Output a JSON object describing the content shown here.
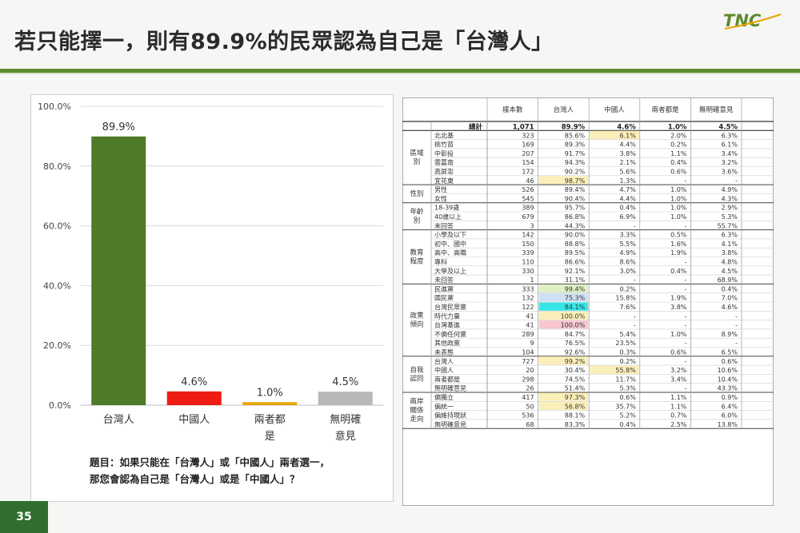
{
  "header": {
    "title": "若只能擇一，則有89.9%的民眾認為自己是「台灣人」",
    "logo_text": "TNC",
    "brand_color": "#5f8a2e"
  },
  "chart_data": {
    "type": "bar",
    "categories": [
      "台灣人",
      "中國人",
      "兩者都是",
      "無明確意見"
    ],
    "values": [
      89.9,
      4.6,
      1.0,
      4.5
    ],
    "value_labels": [
      "89.9%",
      "4.6%",
      "1.0%",
      "4.5%"
    ],
    "colors": [
      "#4f7a2a",
      "#ee1c12",
      "#e7a600",
      "#b8b8b8"
    ],
    "ylim": [
      0,
      100
    ],
    "yticks": [
      "0.0%",
      "20.0%",
      "40.0%",
      "60.0%",
      "80.0%",
      "100.0%"
    ],
    "grid": true,
    "title": "",
    "xlabel": "",
    "ylabel": ""
  },
  "question": {
    "line1": "題目：如果只能在「台灣人」或「中國人」兩者選一，",
    "line2": "那您會認為自己是「台灣人」或是「中國人」？"
  },
  "page_number": "35",
  "table": {
    "headers": [
      "樣本數",
      "台灣人",
      "中國人",
      "兩者都是",
      "無明確意見"
    ],
    "total": {
      "label": "總計",
      "values": [
        "1,071",
        "89.9%",
        "4.6%",
        "1.0%",
        "4.5%"
      ]
    },
    "groups": [
      {
        "name": "區域別",
        "rows": [
          {
            "label": "北北基",
            "values": [
              "323",
              "85.6%",
              "6.1%",
              "2.0%",
              "6.3%"
            ]
          },
          {
            "label": "桃竹苗",
            "values": [
              "169",
              "89.3%",
              "4.4%",
              "0.2%",
              "6.1%"
            ]
          },
          {
            "label": "中彰投",
            "values": [
              "207",
              "91.7%",
              "3.8%",
              "1.1%",
              "3.4%"
            ]
          },
          {
            "label": "雲嘉南",
            "values": [
              "154",
              "94.3%",
              "2.1%",
              "0.4%",
              "3.2%"
            ]
          },
          {
            "label": "高屏澎",
            "values": [
              "172",
              "90.2%",
              "5.6%",
              "0.6%",
              "3.6%"
            ]
          },
          {
            "label": "宜花東",
            "values": [
              "46",
              "98.7%",
              "1.3%",
              "-",
              "-"
            ]
          }
        ]
      },
      {
        "name": "性別",
        "rows": [
          {
            "label": "男性",
            "values": [
              "526",
              "89.4%",
              "4.7%",
              "1.0%",
              "4.9%"
            ]
          },
          {
            "label": "女性",
            "values": [
              "545",
              "90.4%",
              "4.4%",
              "1.0%",
              "4.3%"
            ]
          }
        ]
      },
      {
        "name": "年齡別",
        "rows": [
          {
            "label": "18-39歲",
            "values": [
              "389",
              "95.7%",
              "0.4%",
              "1.0%",
              "2.9%"
            ]
          },
          {
            "label": "40歲以上",
            "values": [
              "679",
              "86.8%",
              "6.9%",
              "1.0%",
              "5.3%"
            ]
          },
          {
            "label": "未回答",
            "values": [
              "3",
              "44.3%",
              "-",
              "-",
              "55.7%"
            ]
          }
        ]
      },
      {
        "name": "教育程度",
        "rows": [
          {
            "label": "小學及以下",
            "values": [
              "142",
              "90.0%",
              "3.3%",
              "0.5%",
              "6.3%"
            ]
          },
          {
            "label": "初中、國中",
            "values": [
              "150",
              "88.8%",
              "5.5%",
              "1.6%",
              "4.1%"
            ]
          },
          {
            "label": "高中、高職",
            "values": [
              "339",
              "89.5%",
              "4.9%",
              "1.9%",
              "3.8%"
            ]
          },
          {
            "label": "專科",
            "values": [
              "110",
              "86.6%",
              "8.6%",
              "-",
              "4.8%"
            ]
          },
          {
            "label": "大學及以上",
            "values": [
              "330",
              "92.1%",
              "3.0%",
              "0.4%",
              "4.5%"
            ]
          },
          {
            "label": "未回答",
            "values": [
              "1",
              "31.1%",
              "-",
              "-",
              "68.9%"
            ]
          }
        ]
      },
      {
        "name": "政黨傾向",
        "rows": [
          {
            "label": "民進黨",
            "values": [
              "333",
              "99.4%",
              "0.2%",
              "-",
              "0.4%"
            ]
          },
          {
            "label": "國民黨",
            "values": [
              "132",
              "75.3%",
              "15.8%",
              "1.9%",
              "7.0%"
            ]
          },
          {
            "label": "台灣民眾黨",
            "values": [
              "122",
              "84.1%",
              "7.6%",
              "3.8%",
              "4.6%"
            ]
          },
          {
            "label": "時代力量",
            "values": [
              "41",
              "100.0%",
              "-",
              "-",
              "-"
            ]
          },
          {
            "label": "台灣基進",
            "values": [
              "41",
              "100.0%",
              "-",
              "-",
              "-"
            ]
          },
          {
            "label": "不偏任何黨",
            "values": [
              "289",
              "84.7%",
              "5.4%",
              "1.0%",
              "8.9%"
            ]
          },
          {
            "label": "其他政黨",
            "values": [
              "9",
              "76.5%",
              "23.5%",
              "-",
              "-"
            ]
          },
          {
            "label": "未表態",
            "values": [
              "104",
              "92.6%",
              "0.3%",
              "0.6%",
              "6.5%"
            ]
          }
        ]
      },
      {
        "name": "自我認同",
        "rows": [
          {
            "label": "台灣人",
            "values": [
              "727",
              "99.2%",
              "0.2%",
              "-",
              "0.6%"
            ]
          },
          {
            "label": "中國人",
            "values": [
              "20",
              "30.4%",
              "55.8%",
              "3.2%",
              "10.6%"
            ]
          },
          {
            "label": "兩者都是",
            "values": [
              "298",
              "74.5%",
              "11.7%",
              "3.4%",
              "10.4%"
            ]
          },
          {
            "label": "無明確意見",
            "values": [
              "26",
              "51.4%",
              "5.3%",
              "-",
              "43.3%"
            ]
          }
        ]
      },
      {
        "name": "兩岸關係走向",
        "rows": [
          {
            "label": "偏獨立",
            "values": [
              "417",
              "97.3%",
              "0.6%",
              "1.1%",
              "0.9%"
            ]
          },
          {
            "label": "偏統一",
            "values": [
              "50",
              "56.8%",
              "35.7%",
              "1.1%",
              "6.4%"
            ]
          },
          {
            "label": "偏維持現狀",
            "values": [
              "536",
              "88.1%",
              "5.2%",
              "0.7%",
              "6.0%"
            ]
          },
          {
            "label": "無明確意見",
            "values": [
              "68",
              "83.3%",
              "0.4%",
              "2.5%",
              "13.8%"
            ]
          }
        ]
      }
    ],
    "highlight_colors": {
      "yellow": "#fbefb9",
      "green": "#dff0c6",
      "blue": "#cfe0f3",
      "cyan": "#37e6e6",
      "pink": "#f7c6cf"
    },
    "highlights": [
      {
        "row": "北北基",
        "col": 2,
        "color": "yellow"
      },
      {
        "row": "宜花東",
        "col": 1,
        "color": "yellow"
      },
      {
        "row": "民進黨",
        "col": 1,
        "color": "green"
      },
      {
        "row": "國民黨",
        "col": 1,
        "color": "blue"
      },
      {
        "row": "台灣民眾黨",
        "col": 1,
        "color": "cyan"
      },
      {
        "row": "時代力量",
        "col": 1,
        "color": "yellow"
      },
      {
        "row": "台灣基進",
        "col": 1,
        "color": "pink"
      },
      {
        "row": "台灣人",
        "col": 1,
        "color": "yellow"
      },
      {
        "row": "中國人",
        "col": 2,
        "color": "yellow"
      },
      {
        "row": "偏獨立",
        "col": 1,
        "color": "yellow"
      },
      {
        "row": "偏統一",
        "col": 1,
        "color": "yellow"
      }
    ]
  }
}
